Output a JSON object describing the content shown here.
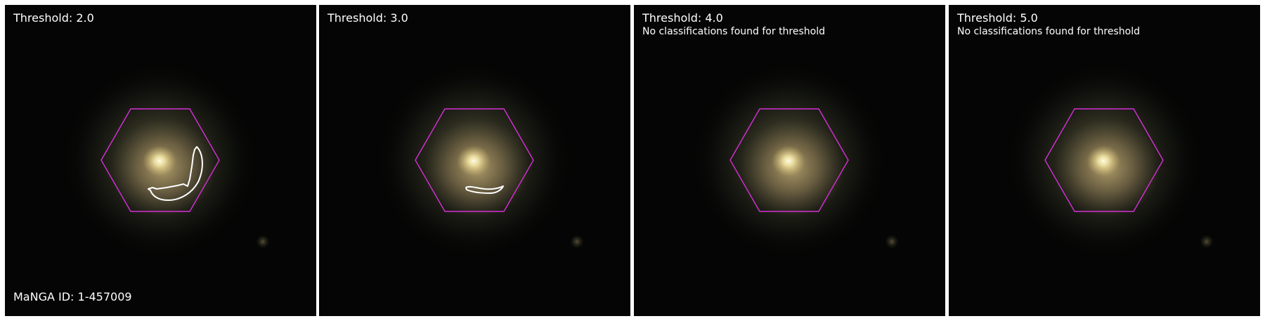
{
  "panels": [
    {
      "title": "Threshold: 2.0",
      "note": "",
      "footer": "MaNGA ID: 1-457009",
      "threshold": 2.0,
      "has_contour": true
    },
    {
      "title": "Threshold: 3.0",
      "note": "",
      "footer": "",
      "threshold": 3.0,
      "has_contour": true
    },
    {
      "title": "Threshold: 4.0",
      "note": "No classifications found for threshold",
      "footer": "",
      "threshold": 4.0,
      "has_contour": false
    },
    {
      "title": "Threshold: 5.0",
      "note": "No classifications found for threshold",
      "footer": "",
      "threshold": 5.0,
      "has_contour": false
    }
  ],
  "colors": {
    "hexagon": "#d62fd6",
    "contour": "#ffffff",
    "sky": "#040504",
    "text": "#ffffff"
  }
}
